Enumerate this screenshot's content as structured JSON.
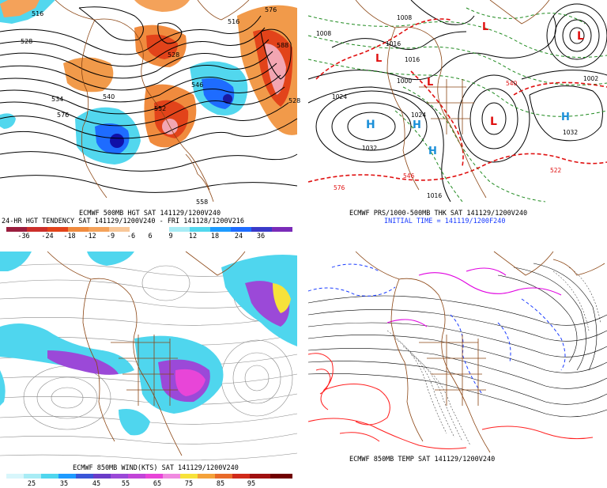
{
  "panels": {
    "top_left": {
      "caption_1": "ECMWF 500MB HGT SAT 141129/1200V240",
      "caption_2": "24-HR HGT TENDENCY SAT 141129/1200V240 - FRI 141128/1200V216",
      "scale_ticks": [
        "-36",
        "-24",
        "-18",
        "-12",
        "-9",
        "-6",
        "6",
        "9",
        "12",
        "18",
        "24",
        "36"
      ],
      "contour_labels": [
        "516",
        "528",
        "534",
        "540",
        "576",
        "558",
        "516",
        "528",
        "546",
        "552",
        "576",
        "588",
        "528"
      ],
      "colors": {
        "falling": "#1e6cff",
        "rising": "#e2431a",
        "strong_rise": "#f2a6b2"
      }
    },
    "top_right": {
      "caption_1": "ECMWF PRS/1000-500MB THK SAT 141129/1200V240",
      "caption_2": "INITIAL TIME = 141119/1200F240",
      "pressure_labels": [
        "1008",
        "1016",
        "1008",
        "1000",
        "1016",
        "1024",
        "1032",
        "1024",
        "1032",
        "1016",
        "1002"
      ],
      "centers": [
        "L",
        "L",
        "L",
        "L",
        "L",
        "H",
        "H",
        "H",
        "H"
      ],
      "thickness_labels": [
        "576",
        "540",
        "546",
        "522"
      ]
    },
    "bottom_left": {
      "caption_1": "ECMWF 850MB WIND(KTS) SAT 141129/1200V240",
      "scale_ticks": [
        "25",
        "35",
        "45",
        "55",
        "65",
        "75",
        "85",
        "95"
      ],
      "colors": {
        "light": "#4fd6ee",
        "mid": "#9b49d8",
        "strong": "#e845d8",
        "peak": "#f7e23a"
      }
    },
    "bottom_right": {
      "caption_1": "ECMWF 850MB TEMP SAT 141129/1200V240",
      "colors": {
        "cold": "#1a3cff",
        "freezing": "#e000e0",
        "warm": "#ff2020"
      }
    }
  }
}
